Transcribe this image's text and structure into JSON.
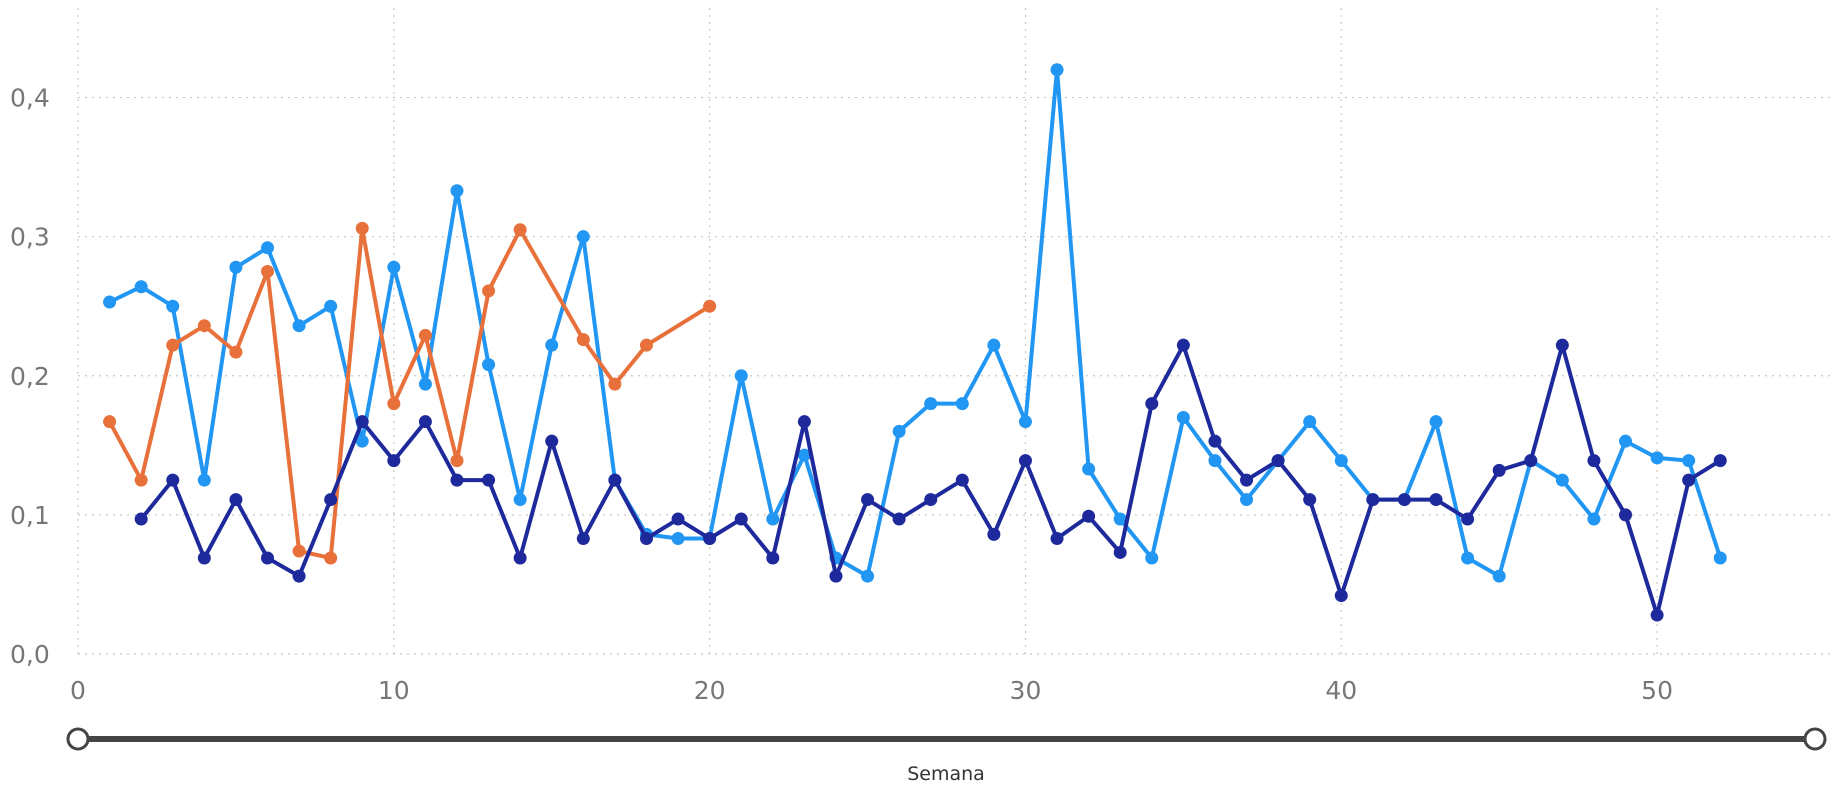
{
  "chart_data": {
    "type": "line",
    "xlabel": "Semana",
    "ylabel": "",
    "xlim": [
      0,
      55
    ],
    "ylim": [
      0,
      0.45
    ],
    "x_ticks": [
      0,
      10,
      20,
      30,
      40,
      50
    ],
    "x_tick_labels": [
      "0",
      "10",
      "20",
      "30",
      "40",
      "50"
    ],
    "y_ticks": [
      0,
      0.1,
      0.2,
      0.3,
      0.4
    ],
    "y_tick_labels": [
      "0,0",
      "0,1",
      "0,2",
      "0,3",
      "0,4"
    ],
    "grid": true,
    "series": [
      {
        "color": "#2196F3",
        "x": [
          1,
          2,
          3,
          4,
          5,
          6,
          7,
          8,
          9,
          10,
          11,
          12,
          13,
          14,
          15,
          16,
          17,
          18,
          19,
          20,
          21,
          22,
          23,
          24,
          25,
          26,
          27,
          28,
          29,
          30,
          31,
          32,
          33,
          34,
          35,
          36,
          37,
          38,
          39,
          40,
          41,
          42,
          43,
          44,
          45,
          46,
          47,
          48,
          49,
          50,
          51,
          52
        ],
        "y": [
          0.253,
          0.264,
          0.25,
          0.125,
          0.278,
          0.292,
          0.236,
          0.25,
          0.153,
          0.278,
          0.194,
          0.333,
          0.208,
          0.111,
          0.222,
          0.3,
          0.125,
          0.086,
          0.083,
          0.083,
          0.2,
          0.097,
          0.143,
          0.069,
          0.056,
          0.16,
          0.18,
          0.18,
          0.222,
          0.167,
          0.42,
          0.133,
          0.097,
          0.069,
          0.17,
          0.139,
          0.111,
          0.139,
          0.167,
          0.139,
          0.111,
          0.111,
          0.167,
          0.069,
          0.056,
          0.139,
          0.125,
          0.097,
          0.153,
          0.141,
          0.139,
          0.069
        ]
      },
      {
        "color": "#E8703A",
        "x": [
          1,
          2,
          3,
          4,
          5,
          6,
          7,
          8,
          9,
          10,
          11,
          12,
          13,
          14,
          15,
          16,
          17,
          18,
          19,
          20
        ],
        "y": [
          0.167,
          0.125,
          0.222,
          0.236,
          0.217,
          0.275,
          0.074,
          0.069,
          0.306,
          0.18,
          0.229,
          0.139,
          0.261,
          0.305,
          null,
          0.226,
          0.194,
          0.222,
          null,
          0.25
        ]
      },
      {
        "color": "#1E2A9C",
        "x": [
          2,
          3,
          4,
          5,
          6,
          7,
          8,
          9,
          10,
          11,
          12,
          13,
          14,
          15,
          16,
          17,
          18,
          19,
          20,
          21,
          22,
          23,
          24,
          25,
          26,
          27,
          28,
          29,
          30,
          31,
          32,
          33,
          34,
          35,
          36,
          37,
          38,
          39,
          40,
          41,
          42,
          43,
          44,
          45,
          46,
          47,
          48,
          49,
          50,
          51,
          52
        ],
        "y": [
          0.097,
          0.125,
          0.069,
          0.111,
          0.069,
          0.056,
          0.111,
          0.167,
          0.139,
          0.167,
          0.125,
          0.125,
          0.069,
          0.153,
          0.083,
          0.125,
          0.083,
          0.097,
          0.083,
          0.097,
          0.069,
          0.167,
          0.056,
          0.111,
          0.097,
          0.111,
          0.125,
          0.086,
          0.139,
          0.083,
          0.099,
          0.073,
          0.18,
          0.222,
          0.153,
          0.125,
          0.139,
          0.111,
          0.042,
          0.111,
          0.111,
          0.111,
          0.097,
          0.132,
          0.139,
          0.222,
          0.139,
          0.1,
          0.028,
          0.125,
          0.139
        ]
      }
    ]
  },
  "slider": {
    "start": 0,
    "end": 55,
    "min": 0,
    "max": 55
  }
}
